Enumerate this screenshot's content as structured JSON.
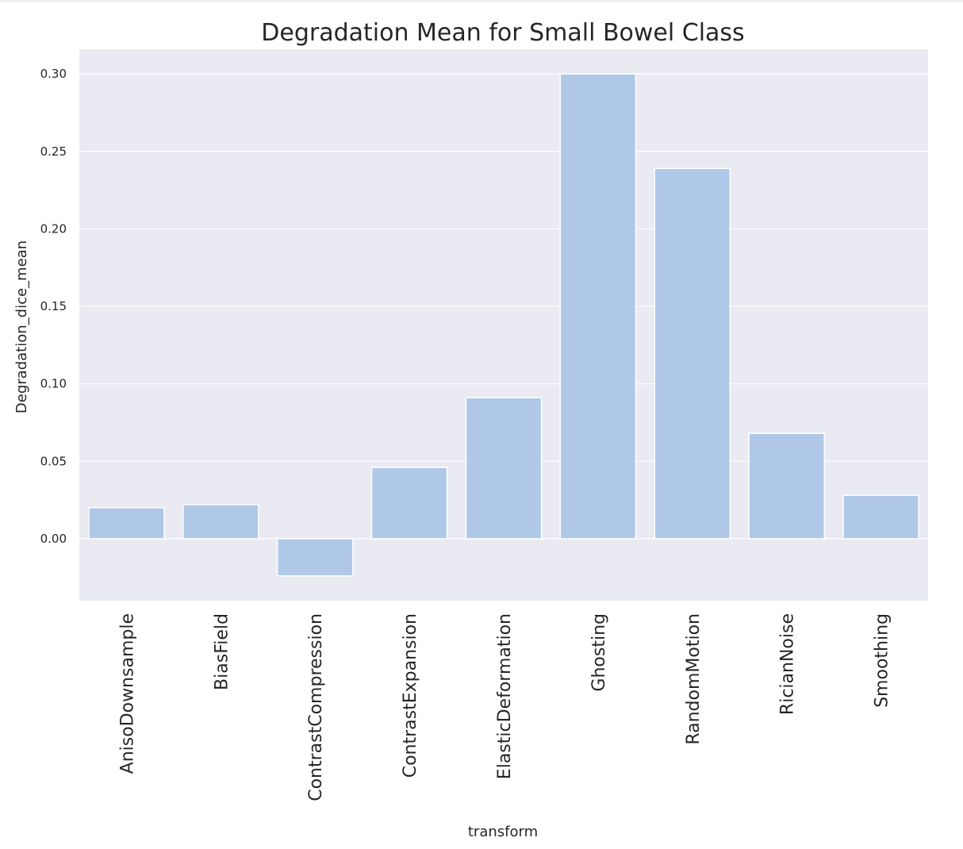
{
  "chart_data": {
    "type": "bar",
    "title": "Degradation Mean for Small Bowel Class",
    "xlabel": "transform",
    "ylabel": "Degradation_dice_mean",
    "categories": [
      "AnisoDownsample",
      "BiasField",
      "ContrastCompression",
      "ContrastExpansion",
      "ElasticDeformation",
      "Ghosting",
      "RandomMotion",
      "RicianNoise",
      "Smoothing"
    ],
    "values": [
      0.02,
      0.022,
      -0.024,
      0.046,
      0.091,
      0.3,
      0.239,
      0.068,
      0.028
    ],
    "ylim": [
      -0.04,
      0.316
    ],
    "yticks": [
      "0.00",
      "0.05",
      "0.10",
      "0.15",
      "0.20",
      "0.25",
      "0.30"
    ],
    "grid": true,
    "colors": {
      "bar": "#b0c8e8",
      "background": "#eaeaf2",
      "grid": "#ffffff"
    }
  }
}
